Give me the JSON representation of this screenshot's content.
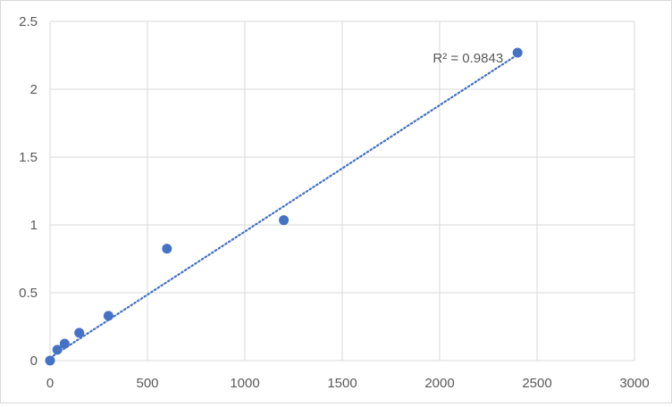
{
  "chart_data": {
    "type": "scatter",
    "title": "",
    "xlabel": "",
    "ylabel": "",
    "xlim": [
      0,
      3000
    ],
    "ylim": [
      0,
      2.5
    ],
    "xticks": [
      0,
      500,
      1000,
      1500,
      2000,
      2500,
      3000
    ],
    "yticks": [
      0,
      0.5,
      1,
      1.5,
      2,
      2.5
    ],
    "xtick_labels": [
      "0",
      "500",
      "1000",
      "1500",
      "2000",
      "2500",
      "3000"
    ],
    "ytick_labels": [
      "0",
      "0.5",
      "1",
      "1.5",
      "2",
      "2.5"
    ],
    "grid": true,
    "series": [
      {
        "x": [
          0,
          37.5,
          75,
          150,
          300,
          600,
          1200,
          2400
        ],
        "y": [
          0,
          0.08,
          0.125,
          0.205,
          0.33,
          0.825,
          1.035,
          2.27
        ]
      }
    ],
    "trendline": {
      "type": "linear",
      "style": "dotted",
      "x_range": [
        0,
        2400
      ],
      "y_at_x_start": 0.02,
      "y_at_x_end": 2.255
    },
    "annotation": {
      "text": "R² = 0.9843",
      "anchor": "upper-right"
    },
    "colors": {
      "marker": "#4472c4",
      "trendline": "#4472c4",
      "grid": "#d9d9d9",
      "text": "#595959"
    }
  }
}
